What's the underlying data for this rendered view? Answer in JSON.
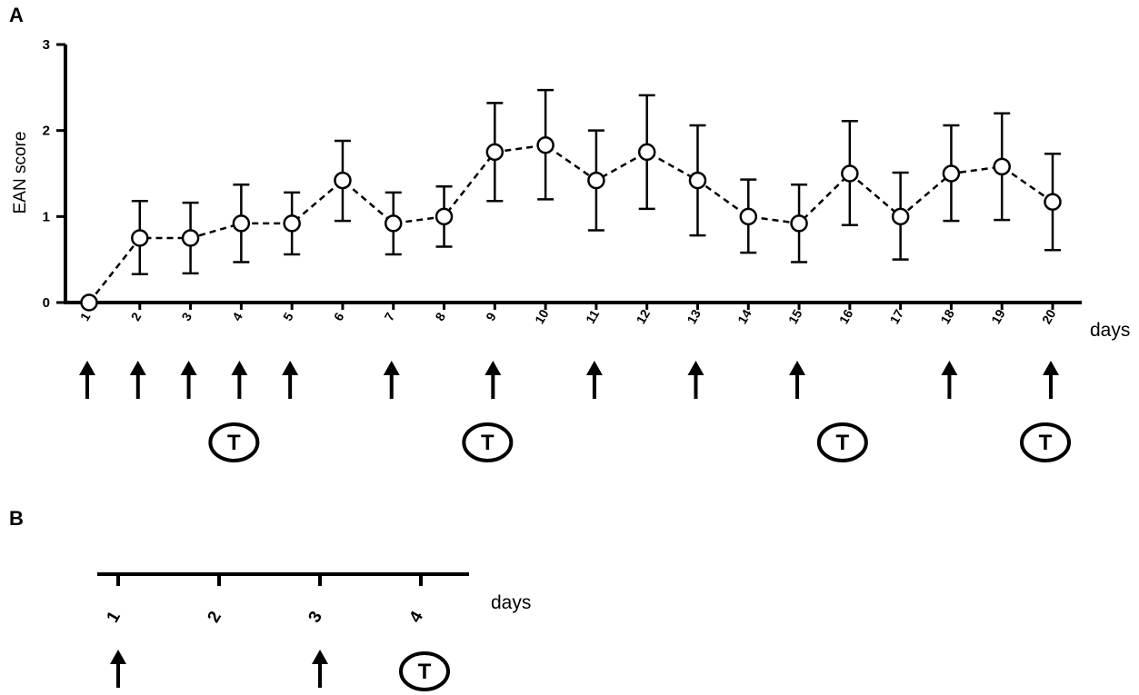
{
  "panels": {
    "a_label": "A",
    "b_label": "B"
  },
  "chart_data": [
    {
      "type": "line",
      "panel": "A",
      "xlabel": "days",
      "ylabel": "EAN score",
      "ylim": [
        0,
        3
      ],
      "yticks": [
        "0",
        "1",
        "2",
        "3"
      ],
      "x": [
        "1",
        "2",
        "3",
        "4",
        "5",
        "6",
        "7",
        "8",
        "9",
        "10",
        "11",
        "12",
        "13",
        "14",
        "15",
        "16",
        "17",
        "18",
        "19",
        "20"
      ],
      "series": [
        {
          "values": [
            0,
            0.75,
            0.75,
            0.92,
            0.92,
            1.42,
            0.92,
            1.0,
            1.75,
            1.83,
            1.42,
            1.75,
            1.42,
            1.0,
            0.92,
            1.5,
            1.0,
            1.5,
            1.58,
            1.17
          ],
          "error_low": [
            0,
            0.33,
            0.34,
            0.47,
            0.56,
            0.95,
            0.56,
            0.65,
            1.18,
            1.2,
            0.84,
            1.09,
            0.78,
            0.58,
            0.47,
            0.9,
            0.5,
            0.95,
            0.96,
            0.61
          ],
          "error_high": [
            0,
            1.18,
            1.16,
            1.37,
            1.28,
            1.88,
            1.28,
            1.35,
            2.32,
            2.47,
            2.0,
            2.41,
            2.06,
            1.43,
            1.37,
            2.11,
            1.51,
            2.06,
            2.2,
            1.73
          ],
          "line_style": "dashed",
          "marker": "open-circle",
          "color": "#000000"
        }
      ],
      "arrow_days": [
        "1",
        "2",
        "3",
        "4",
        "5",
        "7",
        "9",
        "11",
        "13",
        "15",
        "18",
        "20"
      ],
      "t_days": [
        "4",
        "9",
        "16",
        "20"
      ],
      "t_label": "T",
      "grid": false,
      "legend": "none"
    },
    {
      "type": "timeline",
      "panel": "B",
      "xlabel": "days",
      "x": [
        "1",
        "2",
        "3",
        "4"
      ],
      "arrow_days": [
        "1",
        "3"
      ],
      "t_days": [
        "4"
      ],
      "t_label": "T"
    }
  ]
}
